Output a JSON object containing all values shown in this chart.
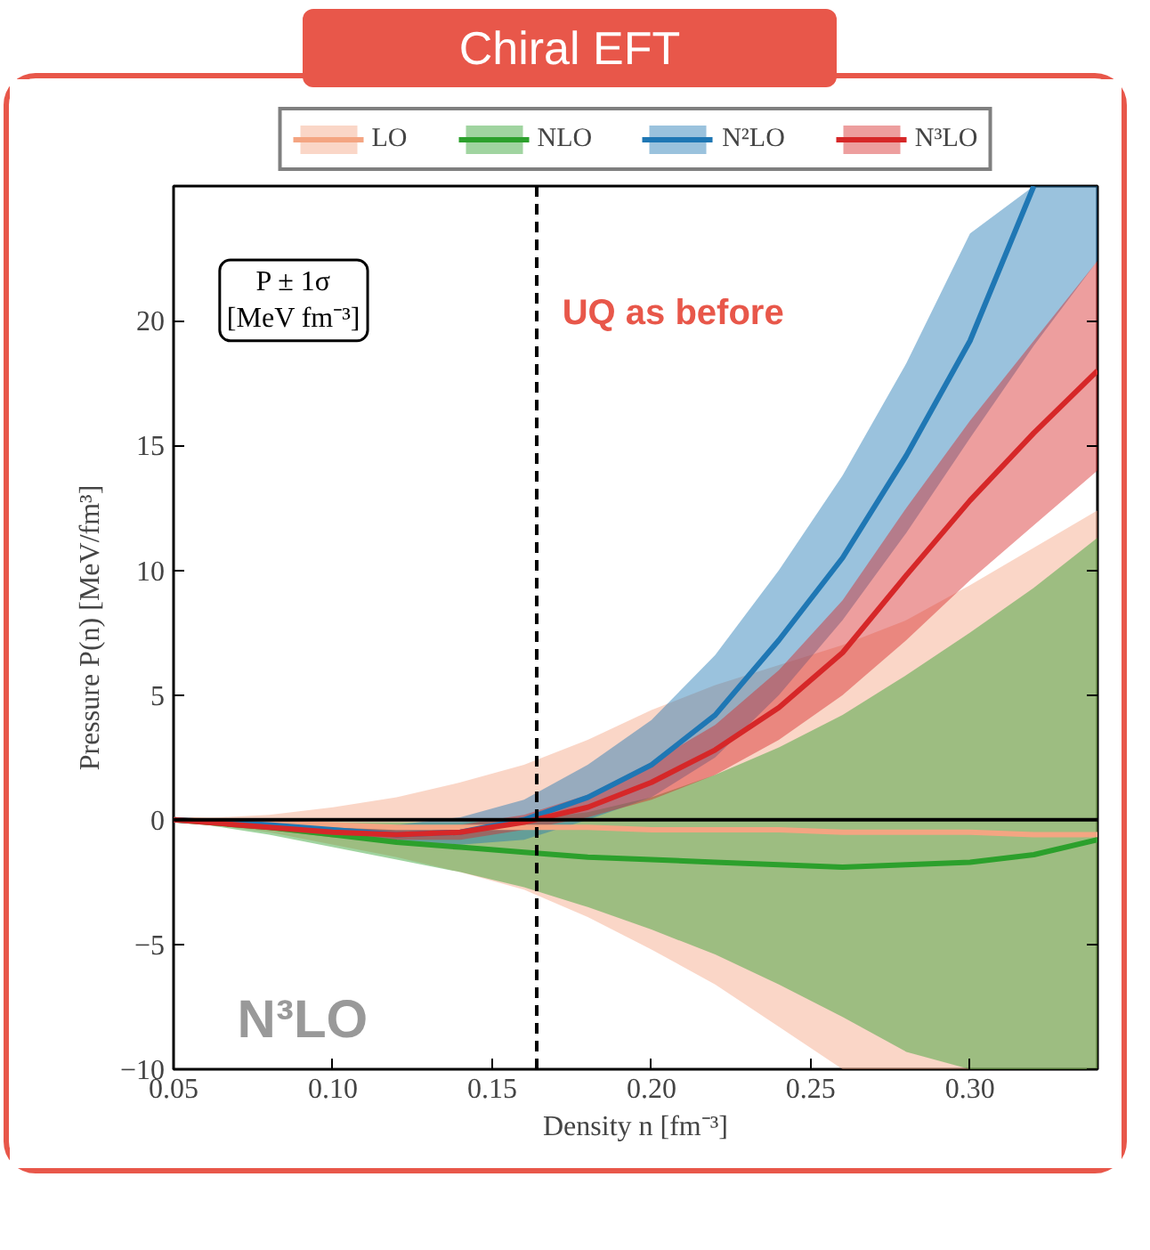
{
  "chart_data": {
    "type": "line",
    "title": "Chiral EFT",
    "xlabel": "Density n [fm⁻³]",
    "ylabel": "Pressure P(n) [MeV/fm³]",
    "x": [
      0.05,
      0.08,
      0.1,
      0.12,
      0.14,
      0.16,
      0.18,
      0.2,
      0.22,
      0.24,
      0.26,
      0.28,
      0.3,
      0.32,
      0.34
    ],
    "series": [
      {
        "name": "LO",
        "color": "#f4a582",
        "values": [
          0,
          -0.1,
          -0.2,
          -0.3,
          -0.3,
          -0.3,
          -0.3,
          -0.4,
          -0.4,
          -0.4,
          -0.5,
          -0.5,
          -0.5,
          -0.6,
          -0.6
        ],
        "lower": [
          0,
          -0.5,
          -1.0,
          -1.5,
          -2.1,
          -2.8,
          -3.9,
          -5.2,
          -6.6,
          -8.3,
          -10,
          -10,
          -10,
          -10,
          -10
        ],
        "upper": [
          0,
          0.2,
          0.5,
          0.9,
          1.5,
          2.2,
          3.2,
          4.4,
          5.4,
          6.2,
          7.0,
          8.0,
          9.4,
          10.9,
          12.4
        ]
      },
      {
        "name": "NLO",
        "color": "#2ca02c",
        "values": [
          0,
          -0.3,
          -0.6,
          -0.9,
          -1.1,
          -1.3,
          -1.5,
          -1.6,
          -1.7,
          -1.8,
          -1.9,
          -1.8,
          -1.7,
          -1.4,
          -0.8
        ],
        "lower": [
          0,
          -0.6,
          -1.1,
          -1.6,
          -2.1,
          -2.7,
          -3.5,
          -4.4,
          -5.4,
          -6.6,
          -7.9,
          -9.3,
          -10,
          -10,
          -10
        ],
        "upper": [
          0,
          -0.05,
          -0.1,
          -0.1,
          -0.1,
          0,
          0.3,
          0.9,
          1.8,
          2.9,
          4.2,
          5.8,
          7.5,
          9.3,
          11.3
        ]
      },
      {
        "name": "N²LO",
        "color": "#1f77b4",
        "values": [
          0,
          -0.2,
          -0.4,
          -0.6,
          -0.5,
          0,
          0.9,
          2.2,
          4.2,
          7.2,
          10.5,
          14.6,
          19.2,
          25.4,
          null
        ],
        "lower": [
          0,
          -0.4,
          -0.6,
          -0.9,
          -1.0,
          -0.8,
          0,
          0.9,
          2.5,
          5.0,
          8.0,
          11.5,
          15.3,
          19.0,
          22.4
        ],
        "upper": [
          0,
          -0.1,
          -0.2,
          -0.2,
          0.1,
          0.8,
          2.2,
          4.0,
          6.6,
          10.0,
          13.8,
          18.3,
          23.5,
          25.4,
          25.4
        ]
      },
      {
        "name": "N³LO",
        "color": "#d62728",
        "values": [
          0,
          -0.3,
          -0.5,
          -0.6,
          -0.5,
          -0.1,
          0.5,
          1.5,
          2.8,
          4.5,
          6.7,
          9.8,
          12.8,
          15.5,
          18.0
        ],
        "lower": [
          0,
          -0.4,
          -0.7,
          -0.8,
          -0.8,
          -0.4,
          0.1,
          0.8,
          1.8,
          3.2,
          5.0,
          7.2,
          9.6,
          11.8,
          14.0
        ],
        "upper": [
          0,
          -0.2,
          -0.3,
          -0.4,
          -0.2,
          0.2,
          1.0,
          2.3,
          3.8,
          6.0,
          8.8,
          12.5,
          16.0,
          19.2,
          22.4
        ]
      }
    ],
    "xlim": [
      0.05,
      0.34
    ],
    "ylim": [
      -10,
      25.4
    ],
    "xticks": [
      0.05,
      {
        "value": 0.1,
        "label": "0.10"
      },
      0.15,
      {
        "value": 0.2,
        "label": "0.20"
      },
      0.25,
      {
        "value": 0.3,
        "label": "0.30"
      }
    ],
    "yticks": [
      {
        "value": -10,
        "label": "−10"
      },
      {
        "value": -5,
        "label": "−5"
      },
      0,
      5,
      10,
      15,
      20
    ],
    "ref_lines": [
      {
        "axis": "x",
        "value": 0.164,
        "color": "#000000",
        "line_style": "dashed"
      },
      {
        "axis": "y",
        "value": 0,
        "color": "#000000",
        "line_style": "solid"
      }
    ],
    "annotations": [
      "P ± 1σ\n[MeV fm⁻³]",
      "UQ as before",
      "N³LO"
    ],
    "legend": "top",
    "grid": false,
    "line_style": "solid",
    "marker": "none"
  }
}
